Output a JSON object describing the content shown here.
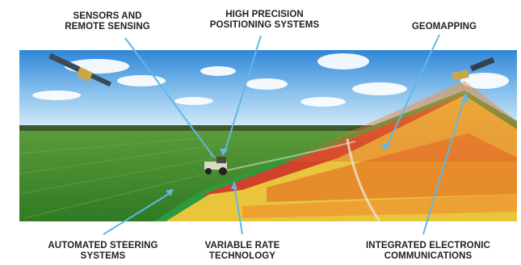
{
  "labels": {
    "sensors": {
      "line1": "SENSORS AND",
      "line2": "REMOTE SENSING"
    },
    "positioning": {
      "line1": "HIGH PRECISION",
      "line2": "POSITIONING SYSTEMS"
    },
    "geomapping": {
      "line1": "GEOMAPPING"
    },
    "steering": {
      "line1": "AUTOMATED STEERING",
      "line2": "SYSTEMS"
    },
    "variable_rate": {
      "line1": "VARIABLE RATE",
      "line2": "TECHNOLOGY"
    },
    "communications": {
      "line1": "INTEGRATED ELECTRONIC",
      "line2": "COMMUNICATIONS"
    }
  },
  "colors": {
    "pointer": "#5fb8e6",
    "sky_top": "#2f86d6",
    "field_green": "#3f8a2e",
    "zone_red": "#d0422a",
    "zone_orange": "#e6852a",
    "zone_yellow": "#e8c53a",
    "zone_green": "#2e9a3e"
  },
  "icons": [
    "satellite-icon",
    "tractor-icon"
  ]
}
